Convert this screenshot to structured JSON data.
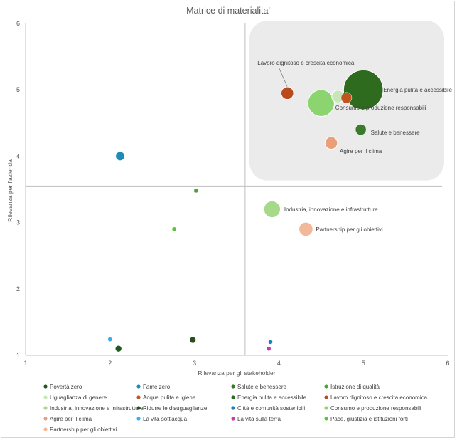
{
  "chart_data": {
    "type": "scatter",
    "title": "Matrice di materialita'",
    "xlabel": "Rilevanza per gli stakeholder",
    "ylabel": "Rilevanza per l'azienda",
    "xlim": [
      1,
      6
    ],
    "ylim": [
      1,
      6
    ],
    "xticks": [
      "1",
      "2",
      "3",
      "4",
      "5",
      "6"
    ],
    "yticks": [
      "1",
      "2",
      "3",
      "4",
      "5",
      "6"
    ],
    "grid": false,
    "legend_position": "bottom",
    "quadrant_lines": {
      "x": 3.6,
      "y": 3.55
    },
    "highlight_region": {
      "x_from": 3.65,
      "x_to": 6,
      "y_from": 3.6,
      "y_to": 6
    },
    "series": [
      {
        "name": "Povertà zero",
        "x": 2.1,
        "y": 1.1,
        "size": 1,
        "color": "#1e5a1e"
      },
      {
        "name": "Fame zero",
        "x": 2.12,
        "y": 4.0,
        "size": 2,
        "color": "#1e8cb8"
      },
      {
        "name": "Salute e benessere",
        "x": 4.97,
        "y": 4.4,
        "size": 3,
        "color": "#3b7a2a",
        "label": "Salute e benessere"
      },
      {
        "name": "Istruzione di qualità",
        "x": 3.02,
        "y": 3.48,
        "size": 0.5,
        "color": "#4ea33a"
      },
      {
        "name": "Uguaglianza di genere",
        "x": 4.7,
        "y": 4.9,
        "size": 4,
        "color": "#c8e6b8"
      },
      {
        "name": "Acqua pulita e igiene",
        "x": 4.8,
        "y": 4.88,
        "size": 3,
        "color": "#c2541e"
      },
      {
        "name": "Energia pulita e accessibile",
        "x": 5.0,
        "y": 5.0,
        "size": 40,
        "color": "#2e6b1e",
        "label": "Energia pulita e accessibile"
      },
      {
        "name": "Lavoro dignitoso e crescita economica",
        "x": 4.1,
        "y": 4.95,
        "size": 4,
        "color": "#b84a1e",
        "label": "Lavoro dignitoso e crescita economica"
      },
      {
        "name": "Industria, innovazione e infrastrutture",
        "x": 3.92,
        "y": 3.2,
        "size": 7,
        "color": "#a6d98a",
        "label": "Industria, innovazione e infrastrutture"
      },
      {
        "name": "Ridurre le disuguaglianze",
        "x": 2.98,
        "y": 1.23,
        "size": 1,
        "color": "#2a4f1e"
      },
      {
        "name": "Città e comunità sostenibili",
        "x": 3.9,
        "y": 1.2,
        "size": 0.5,
        "color": "#1e7fc0"
      },
      {
        "name": "Consumo e produzione responsabili",
        "x": 4.5,
        "y": 4.8,
        "size": 18,
        "color": "#8bd470",
        "label": "Consumo e produzione responsabili"
      },
      {
        "name": "Agire per il clima",
        "x": 4.62,
        "y": 4.2,
        "size": 4,
        "color": "#e8a07a",
        "label": "Agire per il clima"
      },
      {
        "name": "La vita sott'acqua",
        "x": 2.0,
        "y": 1.24,
        "size": 0.5,
        "color": "#38aee8"
      },
      {
        "name": "La vita sulla terra",
        "x": 3.88,
        "y": 1.1,
        "size": 0.5,
        "color": "#c83ab0"
      },
      {
        "name": "Pace, giustizia e istituzioni forti",
        "x": 2.76,
        "y": 2.9,
        "size": 0.5,
        "color": "#5cc43a"
      },
      {
        "name": "Partnership per gli obiettivi",
        "x": 4.32,
        "y": 2.9,
        "size": 5,
        "color": "#f2b89a",
        "label": "Partnership per gli obiettivi"
      }
    ]
  }
}
